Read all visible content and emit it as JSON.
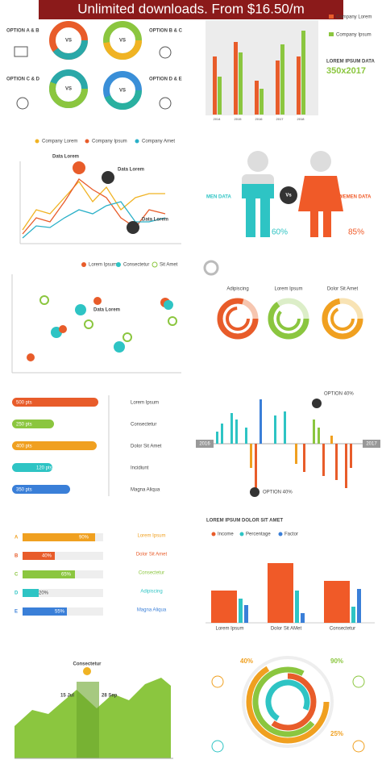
{
  "banner": "Unlimited downloads. From $16.50/m",
  "panel_options": {
    "labels": [
      "OPTION A & B",
      "OPTION B & C",
      "OPTION C & D",
      "OPTION D & E"
    ],
    "vs": "VS"
  },
  "panel_bars": {
    "legend": [
      "Company Lorem",
      "Company Ipsum"
    ],
    "title": "LOREM IPSUM DATA",
    "subtitle": "350x2017",
    "years": [
      "2014",
      "2015",
      "2016",
      "2017",
      "2018"
    ]
  },
  "panel_lines": {
    "legend": [
      "Company Lorem",
      "Company Ipsum",
      "Company Amet"
    ],
    "callouts": [
      "Data Lorem",
      "Data Lorem",
      "Data Lorem"
    ]
  },
  "panel_gender": {
    "men": "MEN DATA",
    "women": "WEMEN DATA",
    "vs": "Vs",
    "men_value": "60%",
    "women_value": "85%"
  },
  "panel_scatter": {
    "legend": [
      "Lorem Ipsum",
      "Consectetur",
      "Sit Amet"
    ],
    "callout": "Data Lorem"
  },
  "panel_rings": {
    "labels": [
      "Adipiscing",
      "Lorem Ipsum",
      "Dolor Sit Amet"
    ]
  },
  "panel_pills": {
    "values": [
      "500 pts",
      "250 pts",
      "400 pts",
      "120 pts",
      "350 pts"
    ],
    "labels": [
      "Lorem Ipsum",
      "Consectetur",
      "Dolor Sit Amet",
      "Incidiunt",
      "Magna Aliqua"
    ]
  },
  "panel_diverge": {
    "start": "2016",
    "end": "2017",
    "top": "OPTION 40%",
    "bottom": "OPTION 40%"
  },
  "panel_letters": {
    "letters": [
      "A",
      "B",
      "C",
      "D",
      "E"
    ],
    "values": [
      "90%",
      "40%",
      "65%",
      "20%",
      "55%"
    ],
    "labels": [
      "Lorem Ipsum",
      "Dolor Sit Amet",
      "Consectetur",
      "Adipiscing",
      "Magna Aliqua"
    ]
  },
  "panel_columns": {
    "title": "LOREM IPSUM DOLOR SIT AMET",
    "legend": [
      "Income",
      "Percentage",
      "Factor"
    ],
    "categories": [
      "Lorem Ipsum",
      "Dolor Sit AMet",
      "Consectetur"
    ]
  },
  "panel_area": {
    "callout": "Consectetur",
    "start": "15 Jul",
    "end": "28 Sep"
  },
  "panel_arcs": {
    "labels": [
      "40%",
      "90%",
      "25%"
    ]
  }
}
